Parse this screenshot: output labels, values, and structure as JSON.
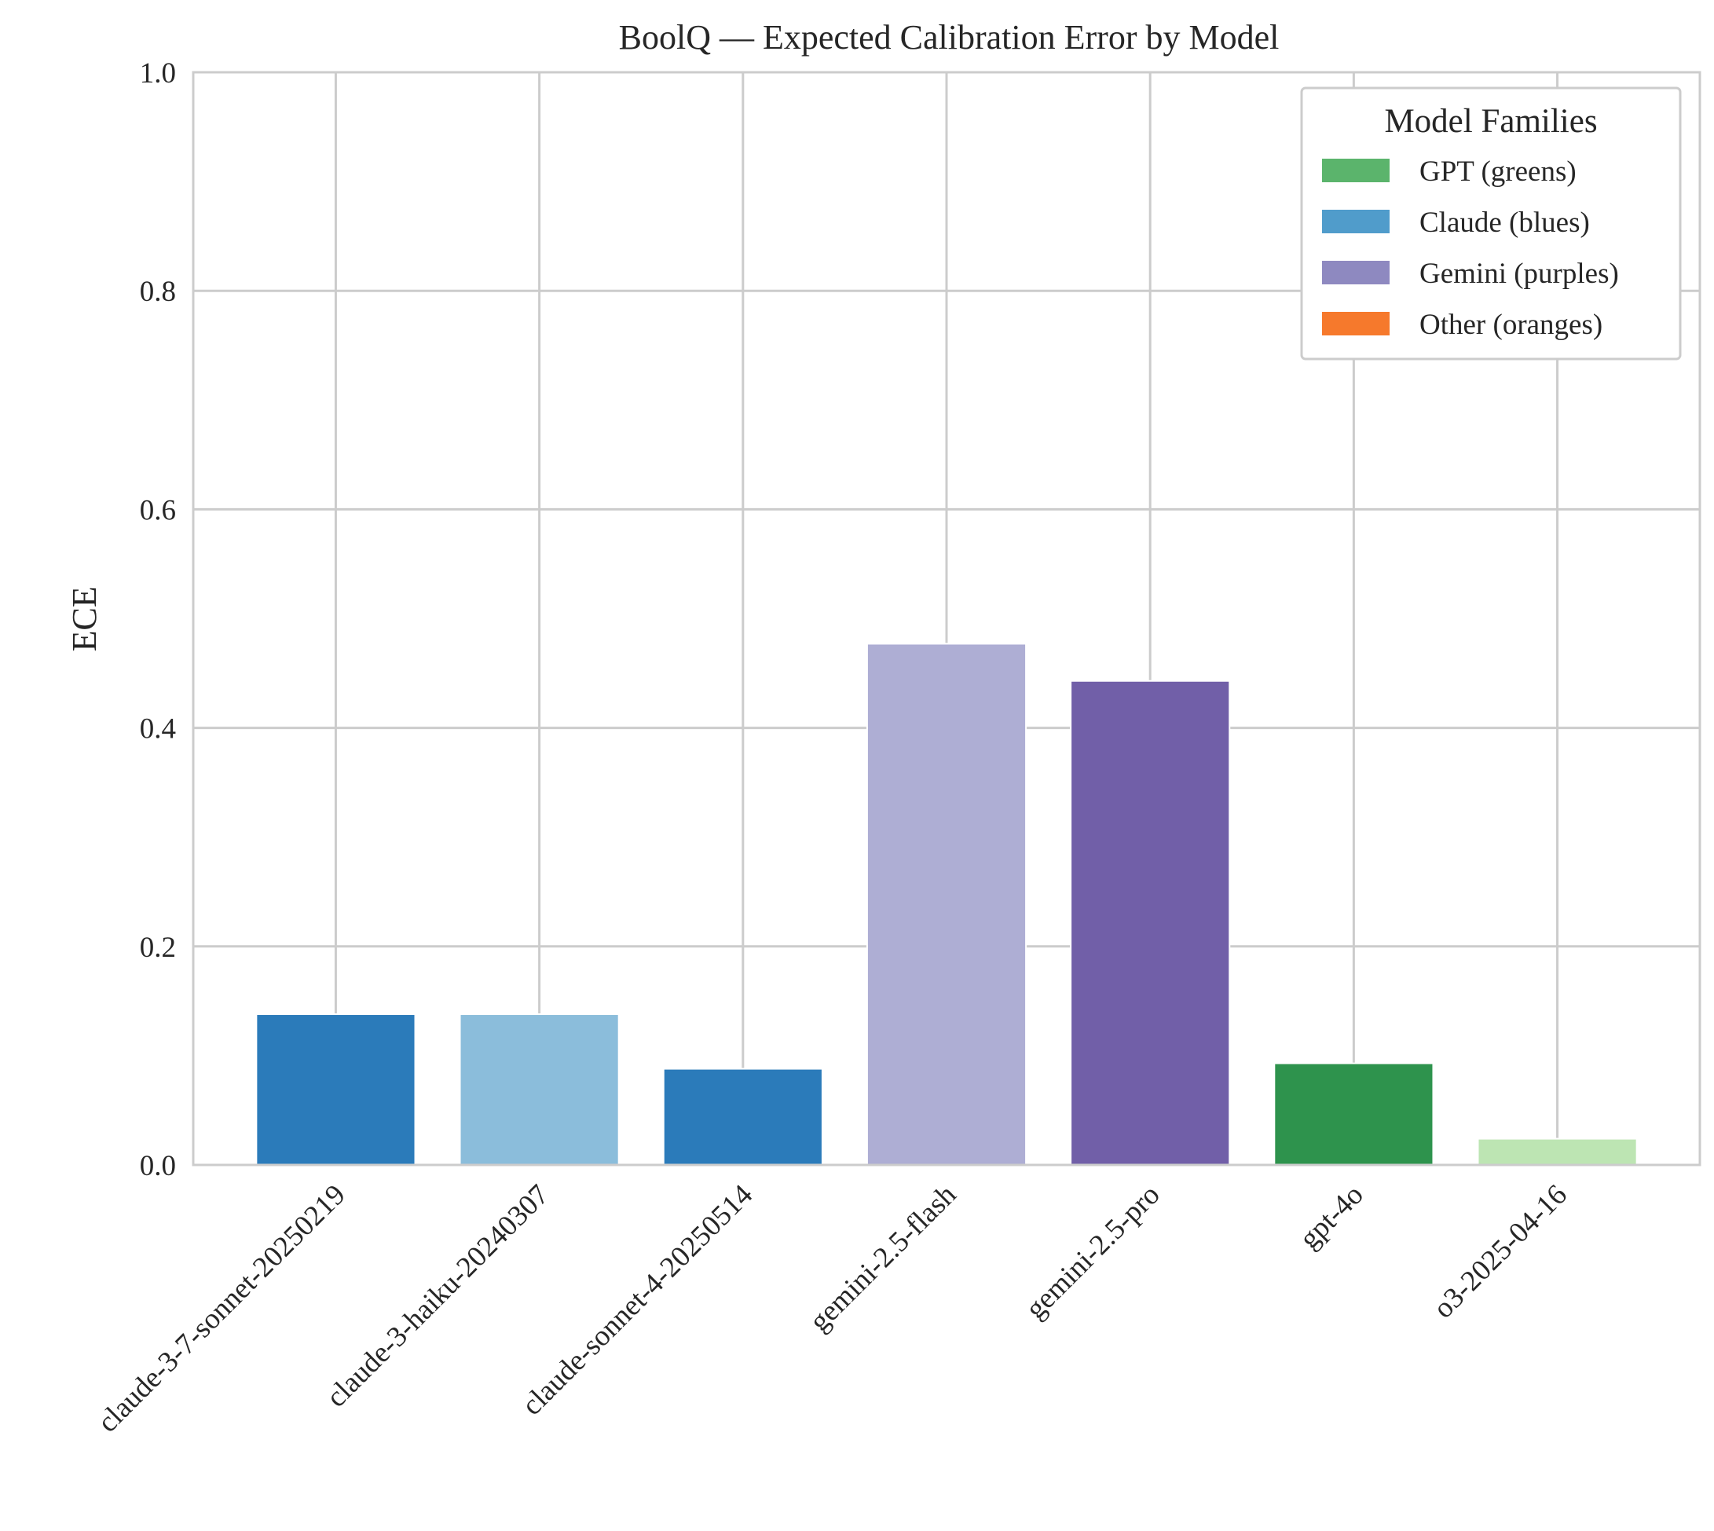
{
  "chart_data": {
    "type": "bar",
    "title": "BoolQ — Expected Calibration Error by Model",
    "xlabel": "",
    "ylabel": "ECE",
    "ylim": [
      0,
      1.0
    ],
    "yticks": [
      "0.0",
      "0.2",
      "0.4",
      "0.6",
      "0.8",
      "1.0"
    ],
    "grid": true,
    "categories": [
      "claude-3-7-sonnet-20250219",
      "claude-3-haiku-20240307",
      "claude-sonnet-4-20250514",
      "gemini-2.5-flash",
      "gemini-2.5-pro",
      "gpt-4o",
      "o3-2025-04-16"
    ],
    "values": [
      0.138,
      0.138,
      0.088,
      0.477,
      0.443,
      0.093,
      0.024
    ],
    "bar_colors": [
      "#2b7bba",
      "#8bbddb",
      "#2b7bba",
      "#aeaed4",
      "#715fa8",
      "#2e934d",
      "#bde5b3"
    ],
    "legend": {
      "title": "Model Families",
      "position": "top-right",
      "items": [
        {
          "label": "GPT (greens)",
          "color": "#5bb46c"
        },
        {
          "label": "Claude (blues)",
          "color": "#509ccb"
        },
        {
          "label": "Gemini (purples)",
          "color": "#8e89c0"
        },
        {
          "label": "Other (oranges)",
          "color": "#f6792c"
        }
      ]
    }
  }
}
